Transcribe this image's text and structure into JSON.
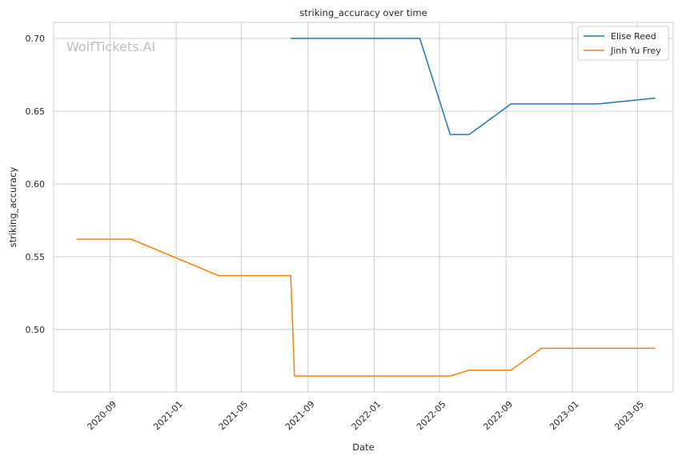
{
  "chart_data": {
    "type": "line",
    "title": "striking_accuracy over time",
    "xlabel": "Date",
    "ylabel": "striking_accuracy",
    "watermark": "WolfTickets.AI",
    "x_ticks": [
      "2020-09",
      "2021-01",
      "2021-05",
      "2021-09",
      "2022-01",
      "2022-05",
      "2022-09",
      "2023-01",
      "2023-05"
    ],
    "y_ticks": [
      "0.50",
      "0.55",
      "0.60",
      "0.65",
      "0.70"
    ],
    "ylim": [
      0.457,
      0.711
    ],
    "xlim": [
      "2020-05-20",
      "2023-07-06"
    ],
    "grid": true,
    "legend_position": "top-right",
    "series": [
      {
        "name": "Elise Reed",
        "color": "#1f77b4",
        "points": [
          {
            "x": "2021-07-31",
            "y": 0.7
          },
          {
            "x": "2022-03-26",
            "y": 0.7
          },
          {
            "x": "2022-05-21",
            "y": 0.634
          },
          {
            "x": "2022-06-25",
            "y": 0.634
          },
          {
            "x": "2022-09-10",
            "y": 0.655
          },
          {
            "x": "2022-12-03",
            "y": 0.655
          },
          {
            "x": "2023-02-18",
            "y": 0.655
          },
          {
            "x": "2023-06-03",
            "y": 0.659
          }
        ]
      },
      {
        "name": "Jinh Yu Frey",
        "color": "#ff7f0e",
        "points": [
          {
            "x": "2020-07-01",
            "y": 0.562
          },
          {
            "x": "2020-10-10",
            "y": 0.562
          },
          {
            "x": "2021-03-20",
            "y": 0.537
          },
          {
            "x": "2021-07-31",
            "y": 0.537
          },
          {
            "x": "2021-08-07",
            "y": 0.468
          },
          {
            "x": "2022-05-21",
            "y": 0.468
          },
          {
            "x": "2022-06-25",
            "y": 0.472
          },
          {
            "x": "2022-09-10",
            "y": 0.472
          },
          {
            "x": "2022-11-05",
            "y": 0.487
          },
          {
            "x": "2023-02-18",
            "y": 0.487
          },
          {
            "x": "2023-06-03",
            "y": 0.487
          }
        ]
      }
    ]
  }
}
